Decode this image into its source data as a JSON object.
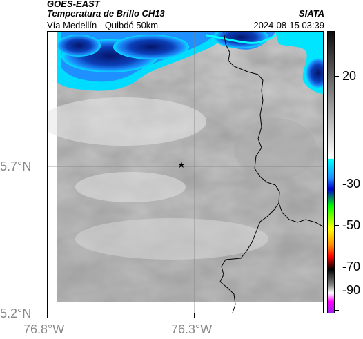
{
  "header": {
    "satellite": "GOES-EAST",
    "product": "Temperatura de Brillo CH13",
    "route": "Vía Medellín - Quibdó 50km",
    "organization": "SIATA",
    "timestamp": "2024-08-15 03:39"
  },
  "map": {
    "lat_ticks": [
      "5.7°N",
      "5.2°N"
    ],
    "lon_ticks": [
      "76.8°W",
      "76.3°W"
    ],
    "marker_icon": "star-icon",
    "gridline_color": "#808080",
    "border_color": "#000000"
  },
  "colorbar": {
    "ticks": [
      "20",
      "-30",
      "-50",
      "-70",
      "-90"
    ],
    "stops": [
      [
        "#0d0d0d",
        0
      ],
      [
        "#ffffff",
        0.45
      ],
      [
        "#00ffff",
        0.455
      ],
      [
        "#1e90ff",
        0.52
      ],
      [
        "#0000cd",
        0.56
      ],
      [
        "#00ff00",
        0.62
      ],
      [
        "#ffff00",
        0.7
      ],
      [
        "#ff8c00",
        0.76
      ],
      [
        "#ff0000",
        0.8
      ],
      [
        "#000000",
        0.845
      ],
      [
        "#808080",
        0.9
      ],
      [
        "#ffffff",
        0.93
      ],
      [
        "#ff00ff",
        0.96
      ],
      [
        "#a020f0",
        1
      ]
    ]
  }
}
